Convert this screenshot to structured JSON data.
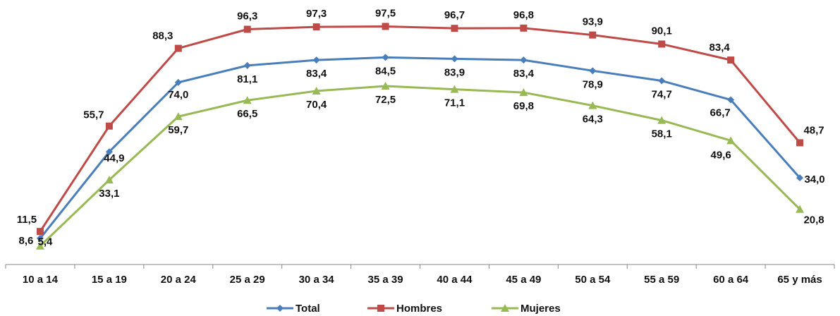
{
  "chart_data": {
    "type": "line",
    "categories": [
      "10 a 14",
      "15 a 19",
      "20 a 24",
      "25 a 29",
      "30 a 34",
      "35 a 39",
      "40 a 44",
      "45 a 49",
      "50 a 54",
      "55 a 59",
      "60 a 64",
      "65 y más"
    ],
    "series": [
      {
        "name": "Total",
        "color": "#4a7ebb",
        "marker": "diamond",
        "values": [
          8.6,
          44.9,
          74.0,
          81.1,
          83.4,
          84.5,
          83.9,
          83.4,
          78.9,
          74.7,
          66.7,
          34.0
        ],
        "labels": [
          "8,6",
          "44,9",
          "74,0",
          "81,1",
          "83,4",
          "84,5",
          "83,9",
          "83,4",
          "78,9",
          "74,7",
          "66,7",
          "34,0"
        ]
      },
      {
        "name": "Hombres",
        "color": "#be4b48",
        "marker": "square",
        "values": [
          11.5,
          55.7,
          88.3,
          96.3,
          97.3,
          97.5,
          96.7,
          96.8,
          93.9,
          90.1,
          83.4,
          48.7
        ],
        "labels": [
          "11,5",
          "55,7",
          "88,3",
          "96,3",
          "97,3",
          "97,5",
          "96,7",
          "96,8",
          "93,9",
          "90,1",
          "83,4",
          "48,7"
        ]
      },
      {
        "name": "Mujeres",
        "color": "#98b954",
        "marker": "triangle",
        "values": [
          5.4,
          33.1,
          59.7,
          66.5,
          70.4,
          72.5,
          71.1,
          69.8,
          64.3,
          58.1,
          49.6,
          20.8
        ],
        "labels": [
          "5,4",
          "33,1",
          "59,7",
          "66,5",
          "70,4",
          "72,5",
          "71,1",
          "69,8",
          "64,3",
          "58,1",
          "49,6",
          "20,8"
        ]
      }
    ],
    "ylim": [
      0,
      100
    ],
    "grid": false,
    "legend": "bottom",
    "title": "",
    "xlabel": "",
    "ylabel": ""
  }
}
